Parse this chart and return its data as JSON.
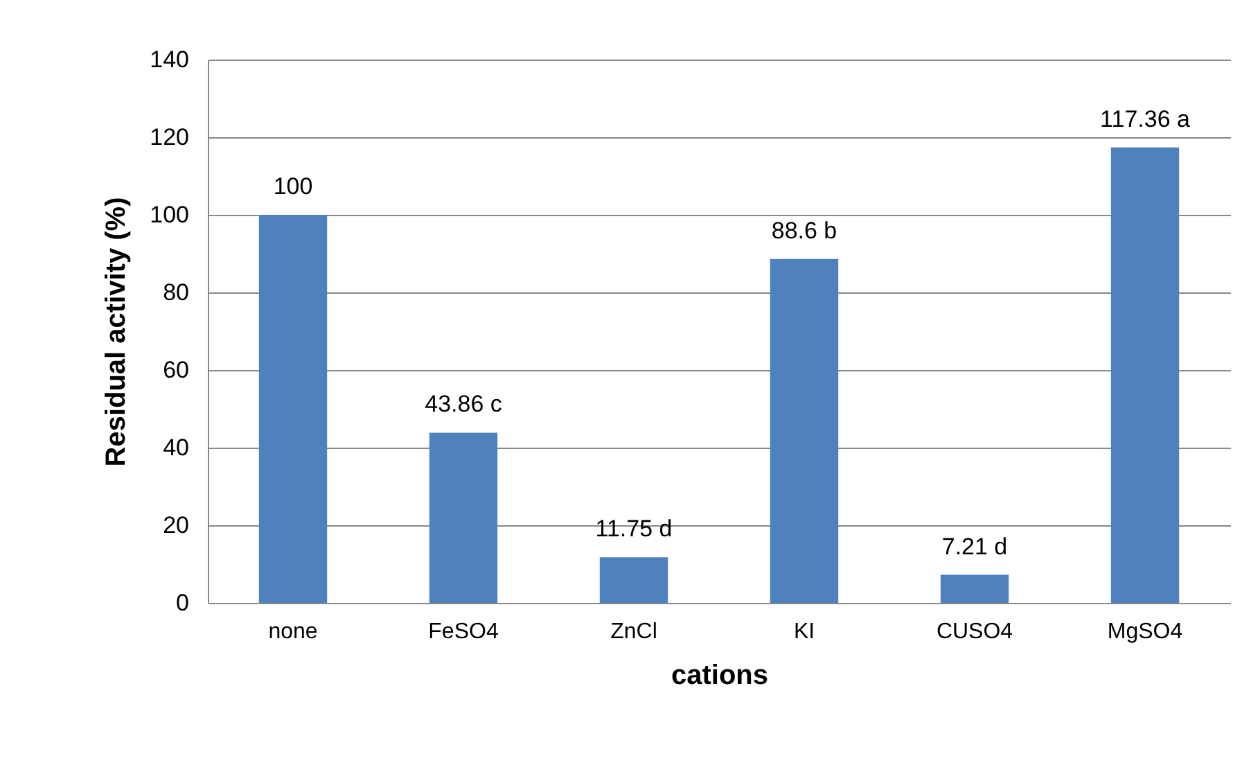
{
  "chart_data": {
    "type": "bar",
    "xlabel": "cations",
    "ylabel": "Residual activity (%)",
    "categories": [
      "none",
      "FeSO4",
      "ZnCl",
      "KI",
      "CUSO4",
      "MgSO4"
    ],
    "values": [
      100,
      43.86,
      11.75,
      88.6,
      7.21,
      117.36
    ],
    "value_labels": [
      "100",
      "43.86 c",
      "11.75 d",
      "88.6 b",
      "7.21 d",
      "117.36 a"
    ],
    "color": "#4f81bd",
    "ylim": [
      0,
      140
    ],
    "yticks": [
      0,
      20,
      40,
      60,
      80,
      100,
      120,
      140
    ],
    "grid": "y"
  }
}
